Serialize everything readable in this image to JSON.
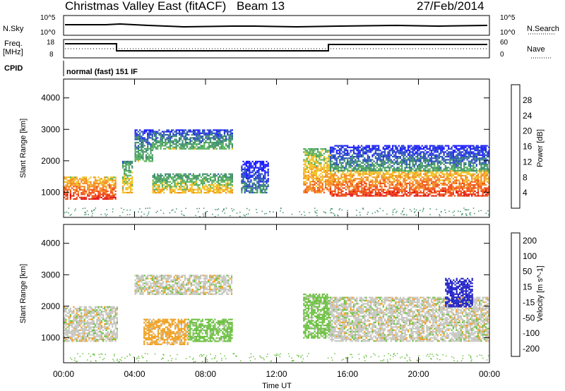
{
  "header": {
    "station": "Christmas Valley East (fitACF)",
    "beam": "Beam 13",
    "date": "27/Feb/2014"
  },
  "strip_labels": {
    "nsky": "N.Sky",
    "nsky_top": "10^5",
    "nsky_bot": "10^0",
    "nsearch": "N.Search",
    "nsearch_top": "10^5",
    "nsearch_bot": "10^0",
    "freq": "Freq.",
    "freq_unit": "[MHz]",
    "freq_top": "18",
    "freq_bot": "8",
    "nave": "Nave",
    "nave_top": "60",
    "nave_bot": "0",
    "cpid": "CPID",
    "cpid_value": "normal (fast) 151 IF"
  },
  "colors": {
    "power": [
      "#1a1aff",
      "#2b4fbf",
      "#3d8f6a",
      "#55b05a",
      "#f0c020",
      "#f58a20",
      "#f04a14",
      "#e01010"
    ],
    "velocity": [
      "#2020c8",
      "#3a9a5a",
      "#6cc040",
      "#c6c6c0",
      "#f0a020",
      "#f07010",
      "#e01010"
    ],
    "axis": "#000000"
  },
  "chart_data": [
    {
      "type": "heatmap",
      "title": "Power",
      "ylabel": "Slant Range [km]",
      "ylim": [
        200,
        4600
      ],
      "yticks": [
        "1000",
        "2000",
        "3000",
        "4000"
      ],
      "colorbar_label": "Power [dB]",
      "colorbar_ticks": [
        "4",
        "8",
        "12",
        "16",
        "20",
        "24",
        "28"
      ],
      "colorbar_range": [
        0,
        32
      ],
      "regions": [
        {
          "t0": 0.0,
          "t1": 2.9,
          "r0": 800,
          "r1": 1500,
          "power": 28
        },
        {
          "t0": 3.3,
          "t1": 3.9,
          "r0": 1000,
          "r1": 2000,
          "power": 20
        },
        {
          "t0": 4.0,
          "t1": 5.0,
          "r0": 2000,
          "r1": 3000,
          "power": 14
        },
        {
          "t0": 5.0,
          "t1": 9.5,
          "r0": 2400,
          "r1": 3000,
          "power": 14
        },
        {
          "t0": 5.0,
          "t1": 9.5,
          "r0": 1000,
          "r1": 1600,
          "power": 20
        },
        {
          "t0": 10.0,
          "t1": 11.5,
          "r0": 1000,
          "r1": 2000,
          "power": 10
        },
        {
          "t0": 13.5,
          "t1": 15.0,
          "r0": 1000,
          "r1": 2400,
          "power": 24
        },
        {
          "t0": 15.0,
          "t1": 24.0,
          "r0": 900,
          "r1": 1700,
          "power": 28
        },
        {
          "t0": 15.0,
          "t1": 24.0,
          "r0": 1700,
          "r1": 2500,
          "power": 12
        }
      ]
    },
    {
      "type": "heatmap",
      "title": "Velocity",
      "xlabel": "Time UT",
      "ylabel": "Slant Range [km]",
      "ylim": [
        200,
        4600
      ],
      "yticks": [
        "1000",
        "2000",
        "3000",
        "4000"
      ],
      "xticks": [
        "00:00",
        "04:00",
        "08:00",
        "12:00",
        "16:00",
        "20:00",
        "00:00"
      ],
      "xlim": [
        0,
        24
      ],
      "colorbar_label": "Velocity [m s^-1]",
      "colorbar_ticks": [
        "200",
        "100",
        "50",
        "15",
        "-15",
        "-50",
        "-100",
        "-200"
      ],
      "regions": [
        {
          "t0": 0.0,
          "t1": 3.0,
          "r0": 900,
          "r1": 2000,
          "velocity": 0
        },
        {
          "t0": 4.0,
          "t1": 9.5,
          "r0": 2400,
          "r1": 3000,
          "velocity": 0
        },
        {
          "t0": 4.5,
          "t1": 7.0,
          "r0": 800,
          "r1": 1600,
          "velocity": -30
        },
        {
          "t0": 7.0,
          "t1": 9.5,
          "r0": 900,
          "r1": 1600,
          "velocity": 30
        },
        {
          "t0": 13.5,
          "t1": 15.0,
          "r0": 1000,
          "r1": 2400,
          "velocity": 30
        },
        {
          "t0": 15.0,
          "t1": 24.0,
          "r0": 900,
          "r1": 2300,
          "velocity": 0
        },
        {
          "t0": 21.5,
          "t1": 23.0,
          "r0": 2000,
          "r1": 2900,
          "velocity": 150
        }
      ]
    }
  ]
}
